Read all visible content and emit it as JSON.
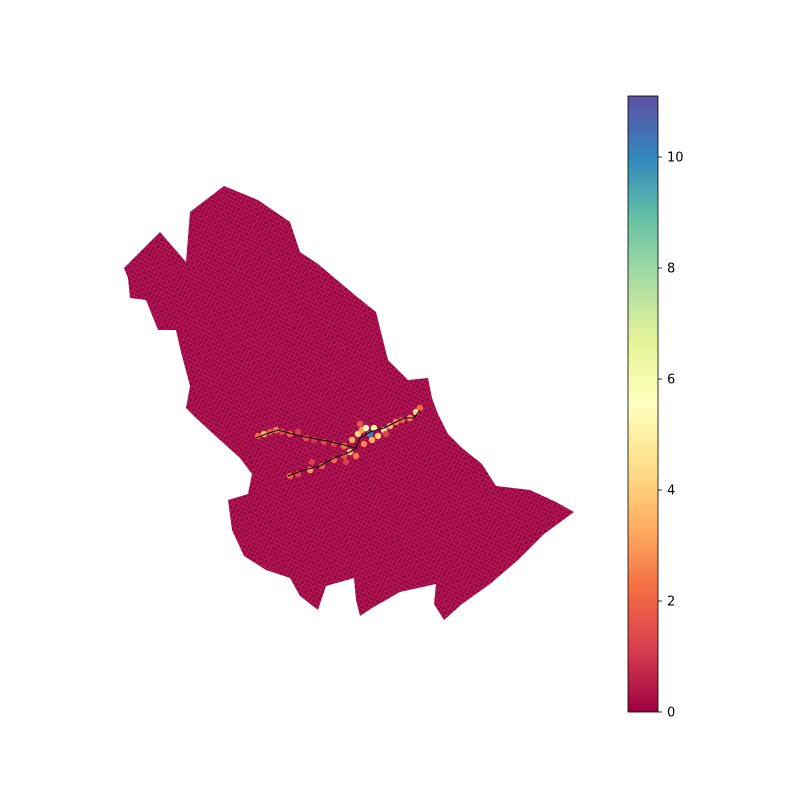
{
  "chart_data": {
    "type": "heatmap",
    "map_style": "hexbin choropleth over a region outline with a black route line",
    "title": "",
    "xlabel": "",
    "ylabel": "",
    "colormap": "Spectral",
    "colorbar": {
      "min": 0,
      "max": 11.1,
      "ticks": [
        0,
        2,
        4,
        6,
        8,
        10
      ],
      "tick_labels": [
        "0",
        "2",
        "4",
        "6",
        "8",
        "10"
      ],
      "colors": [
        "#9e0142",
        "#d53e4f",
        "#f46d43",
        "#fdae61",
        "#fee08b",
        "#ffffbf",
        "#e6f598",
        "#abdda4",
        "#66c2a5",
        "#3288bd",
        "#5e4fa2"
      ],
      "placement": "right"
    },
    "background_value": 0,
    "background_color": "#9e0142",
    "hexbin_edge_color": "#c8587a",
    "route_color": "#000000",
    "hotspot_values": {
      "general_corridor": "1-4",
      "peak": 10
    },
    "axes_visible": false,
    "grid": false
  }
}
